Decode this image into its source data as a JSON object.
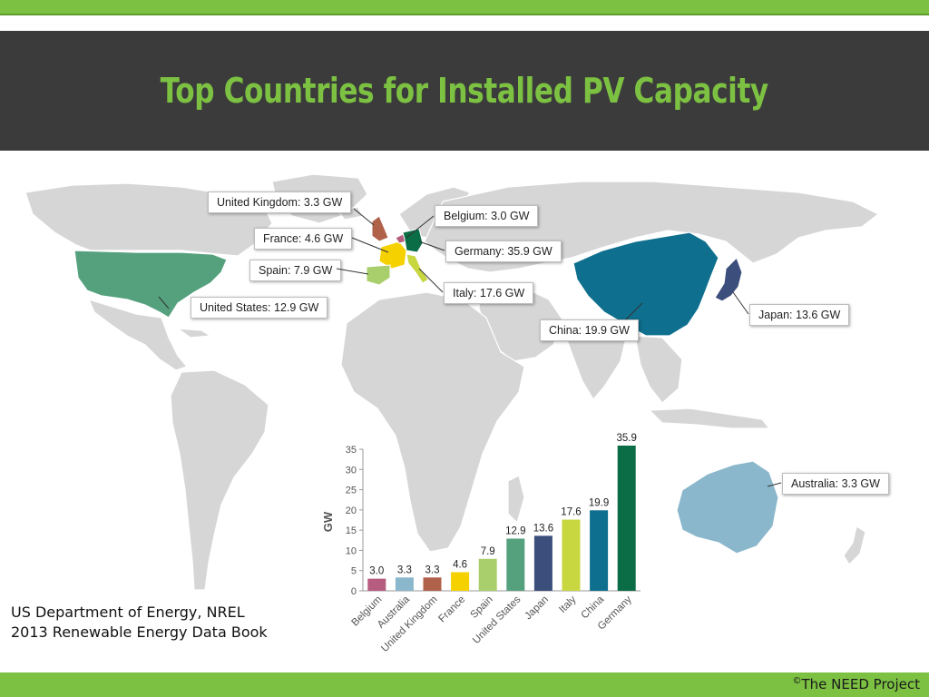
{
  "header": {
    "title": "Top Countries for Installed PV Capacity"
  },
  "callouts": {
    "united_kingdom": "United Kingdom:  3.3 GW",
    "belgium": "Belgium:  3.0 GW",
    "france": "France:  4.6 GW",
    "germany": "Germany:  35.9 GW",
    "spain": "Spain:  7.9 GW",
    "italy": "Italy:  17.6 GW",
    "united_states": "United States:  12.9 GW",
    "china": "China:  19.9 GW",
    "japan": "Japan:  13.6 GW",
    "australia": "Australia:  3.3 GW"
  },
  "source": {
    "text": "US Department of Energy, NREL 2013 Renewable Energy Data Book"
  },
  "footer": {
    "copyright_symbol": "©",
    "text": "The NEED Project"
  },
  "chart_data": {
    "type": "bar",
    "categories": [
      "Belgium",
      "Australia",
      "United Kingdom",
      "France",
      "Spain",
      "United States",
      "Japan",
      "Italy",
      "China",
      "Germany"
    ],
    "values": [
      3.0,
      3.3,
      3.3,
      4.6,
      7.9,
      12.9,
      13.6,
      17.6,
      19.9,
      35.9
    ],
    "value_labels": [
      "3.0",
      "3.3",
      "3.3",
      "4.6",
      "7.9",
      "12.9",
      "13.6",
      "17.6",
      "19.9",
      "35.9"
    ],
    "colors": [
      "#b65d7f",
      "#8ab7cc",
      "#b0614a",
      "#f5d100",
      "#a8cf6b",
      "#55a17e",
      "#3b4e7c",
      "#c8d640",
      "#0e6f8e",
      "#0a6d45"
    ],
    "ylabel": "GW",
    "ylim": [
      0,
      35
    ],
    "yticks": [
      0,
      5,
      10,
      15,
      20,
      25,
      30,
      35
    ],
    "grid": false
  }
}
